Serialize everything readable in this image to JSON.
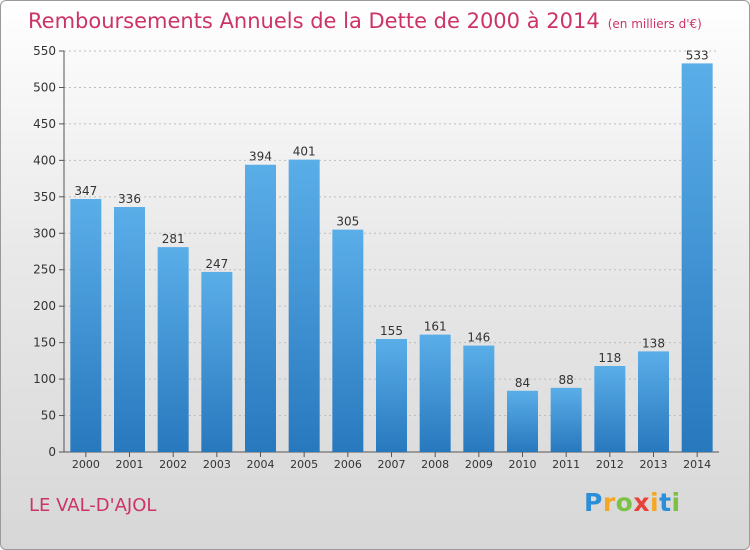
{
  "title": "Remboursements Annuels de la Dette de 2000 à 2014",
  "subtitle": "(en milliers d'€)",
  "place_name": "LE VAL-D'AJOL",
  "logo": {
    "text": "Proxiti",
    "letters": [
      {
        "ch": "P",
        "color": "#2a8fd8"
      },
      {
        "ch": "r",
        "color": "#f5a623"
      },
      {
        "ch": "o",
        "color": "#7cc242"
      },
      {
        "ch": "x",
        "color": "#e8413c"
      },
      {
        "ch": "i",
        "color": "#f5a623"
      },
      {
        "ch": "t",
        "color": "#2a8fd8"
      },
      {
        "ch": "i",
        "color": "#7cc242"
      }
    ]
  },
  "colors": {
    "title": "#cc3366",
    "bar_light": "#5aaee8",
    "bar_dark": "#2878be",
    "gridline": "#bdbdbd"
  },
  "chart_data": {
    "type": "bar",
    "categories": [
      "2000",
      "2001",
      "2002",
      "2003",
      "2004",
      "2005",
      "2006",
      "2007",
      "2008",
      "2009",
      "2010",
      "2011",
      "2012",
      "2013",
      "2014"
    ],
    "values": [
      347,
      336,
      281,
      247,
      394,
      401,
      305,
      155,
      161,
      146,
      84,
      88,
      118,
      138,
      533
    ],
    "ylim": [
      0,
      550
    ],
    "yticks": [
      0,
      50,
      100,
      150,
      200,
      250,
      300,
      350,
      400,
      450,
      500,
      550
    ],
    "grid": true,
    "data_labels": true
  }
}
